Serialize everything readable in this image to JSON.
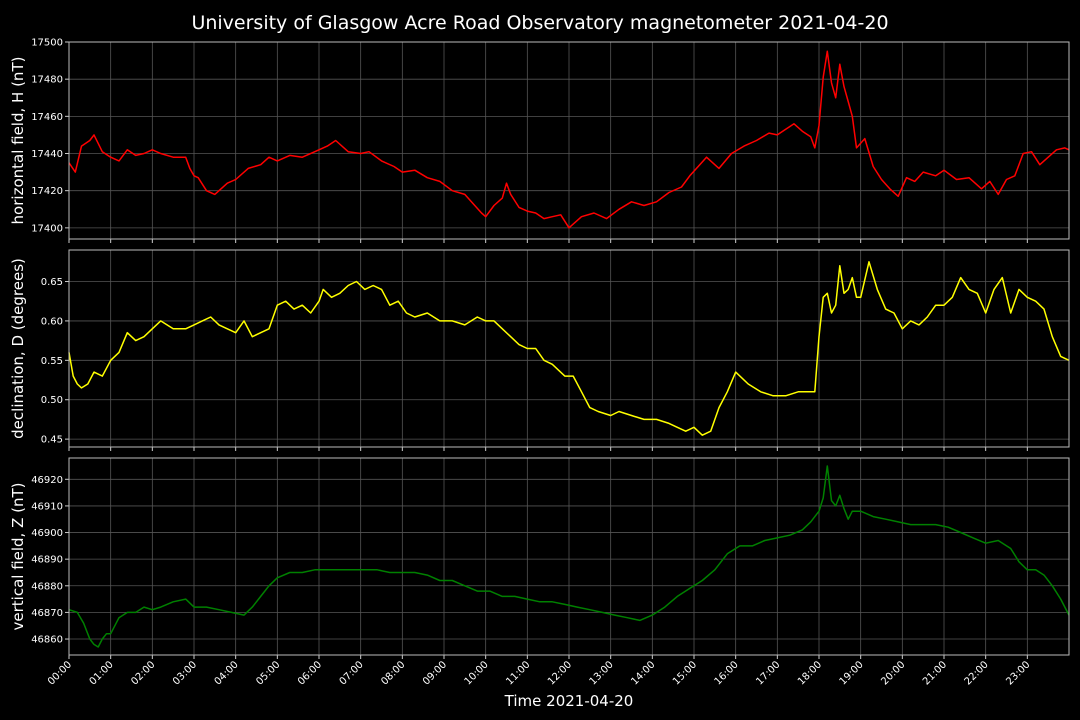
{
  "chart_data": {
    "type": "line",
    "title": "University of Glasgow Acre Road Observatory magnetometer 2021-04-20",
    "xlabel": "Time 2021-04-20",
    "x_ticks": [
      "00:00",
      "01:00",
      "02:00",
      "03:00",
      "04:00",
      "05:00",
      "06:00",
      "07:00",
      "08:00",
      "09:00",
      "10:00",
      "11:00",
      "12:00",
      "13:00",
      "14:00",
      "15:00",
      "16:00",
      "17:00",
      "18:00",
      "19:00",
      "20:00",
      "21:00",
      "22:00",
      "23:00"
    ],
    "xlim": [
      0,
      24
    ],
    "grid": true,
    "panels": [
      {
        "ylabel": "horizontal field, H (nT)",
        "color": "#ff0000",
        "ylim": [
          17394,
          17500
        ],
        "y_ticks": [
          17400,
          17420,
          17440,
          17460,
          17480,
          17500
        ],
        "x": [
          0,
          0.15,
          0.3,
          0.5,
          0.6,
          0.8,
          1.0,
          1.2,
          1.4,
          1.6,
          1.8,
          2.0,
          2.2,
          2.5,
          2.8,
          2.9,
          3.0,
          3.1,
          3.3,
          3.5,
          3.8,
          4.0,
          4.3,
          4.6,
          4.8,
          5.0,
          5.3,
          5.6,
          5.9,
          6.2,
          6.4,
          6.7,
          7.0,
          7.2,
          7.5,
          7.8,
          8.0,
          8.3,
          8.6,
          8.9,
          9.2,
          9.5,
          9.7,
          9.9,
          10.0,
          10.2,
          10.4,
          10.5,
          10.6,
          10.8,
          11.0,
          11.2,
          11.4,
          11.6,
          11.8,
          12.0,
          12.1,
          12.3,
          12.6,
          12.9,
          13.2,
          13.5,
          13.8,
          14.1,
          14.4,
          14.7,
          14.9,
          15.1,
          15.3,
          15.6,
          15.9,
          16.2,
          16.5,
          16.8,
          17.0,
          17.2,
          17.4,
          17.6,
          17.8,
          17.9,
          18.0,
          18.1,
          18.2,
          18.3,
          18.4,
          18.5,
          18.6,
          18.7,
          18.8,
          18.9,
          19.1,
          19.3,
          19.5,
          19.7,
          19.9,
          20.1,
          20.3,
          20.5,
          20.8,
          21.0,
          21.3,
          21.6,
          21.9,
          22.1,
          22.3,
          22.5,
          22.7,
          22.9,
          23.1,
          23.3,
          23.5,
          23.7,
          23.9,
          24.0
        ],
        "values": [
          17435,
          17430,
          17444,
          17447,
          17450,
          17441,
          17438,
          17436,
          17442,
          17439,
          17440,
          17442,
          17440,
          17438,
          17438,
          17432,
          17428,
          17427,
          17420,
          17418,
          17424,
          17426,
          17432,
          17434,
          17438,
          17436,
          17439,
          17438,
          17441,
          17444,
          17447,
          17441,
          17440,
          17441,
          17436,
          17433,
          17430,
          17431,
          17427,
          17425,
          17420,
          17418,
          17413,
          17408,
          17406,
          17412,
          17416,
          17424,
          17418,
          17411,
          17409,
          17408,
          17405,
          17406,
          17407,
          17400,
          17402,
          17406,
          17408,
          17405,
          17410,
          17414,
          17412,
          17414,
          17419,
          17422,
          17428,
          17433,
          17438,
          17432,
          17440,
          17444,
          17447,
          17451,
          17450,
          17453,
          17456,
          17452,
          17449,
          17443,
          17455,
          17481,
          17495,
          17478,
          17470,
          17488,
          17476,
          17468,
          17460,
          17443,
          17448,
          17433,
          17426,
          17421,
          17417,
          17427,
          17425,
          17430,
          17428,
          17431,
          17426,
          17427,
          17421,
          17425,
          17418,
          17426,
          17428,
          17440,
          17441,
          17434,
          17438,
          17442,
          17443,
          17442
        ]
      },
      {
        "ylabel": "declination, D (degrees)",
        "color": "#ffff00",
        "ylim": [
          0.44,
          0.69
        ],
        "y_ticks": [
          0.45,
          0.5,
          0.55,
          0.6,
          0.65
        ],
        "x": [
          0,
          0.1,
          0.2,
          0.3,
          0.45,
          0.6,
          0.8,
          1.0,
          1.2,
          1.4,
          1.6,
          1.8,
          2.0,
          2.2,
          2.5,
          2.8,
          3.0,
          3.2,
          3.4,
          3.6,
          3.8,
          4.0,
          4.2,
          4.4,
          4.6,
          4.8,
          5.0,
          5.2,
          5.4,
          5.6,
          5.8,
          6.0,
          6.1,
          6.3,
          6.5,
          6.7,
          6.9,
          7.1,
          7.3,
          7.5,
          7.7,
          7.9,
          8.1,
          8.3,
          8.6,
          8.9,
          9.2,
          9.5,
          9.8,
          10.0,
          10.2,
          10.4,
          10.6,
          10.8,
          11.0,
          11.2,
          11.4,
          11.6,
          11.9,
          12.1,
          12.3,
          12.5,
          12.7,
          13.0,
          13.2,
          13.5,
          13.8,
          14.1,
          14.4,
          14.6,
          14.8,
          15.0,
          15.2,
          15.4,
          15.6,
          15.8,
          16.0,
          16.3,
          16.6,
          16.9,
          17.2,
          17.5,
          17.9,
          18.0,
          18.1,
          18.2,
          18.3,
          18.4,
          18.5,
          18.6,
          18.7,
          18.8,
          18.9,
          19.0,
          19.2,
          19.4,
          19.6,
          19.8,
          20.0,
          20.2,
          20.4,
          20.6,
          20.8,
          21.0,
          21.2,
          21.4,
          21.6,
          21.8,
          22.0,
          22.2,
          22.4,
          22.6,
          22.8,
          23.0,
          23.2,
          23.4,
          23.6,
          23.8,
          24.0
        ],
        "values": [
          0.56,
          0.53,
          0.52,
          0.515,
          0.52,
          0.535,
          0.53,
          0.55,
          0.56,
          0.585,
          0.575,
          0.58,
          0.59,
          0.6,
          0.59,
          0.59,
          0.595,
          0.6,
          0.605,
          0.595,
          0.59,
          0.585,
          0.6,
          0.58,
          0.585,
          0.59,
          0.62,
          0.625,
          0.615,
          0.62,
          0.61,
          0.625,
          0.64,
          0.63,
          0.635,
          0.645,
          0.65,
          0.64,
          0.645,
          0.64,
          0.62,
          0.625,
          0.61,
          0.605,
          0.61,
          0.6,
          0.6,
          0.595,
          0.605,
          0.6,
          0.6,
          0.59,
          0.58,
          0.57,
          0.565,
          0.565,
          0.55,
          0.545,
          0.53,
          0.53,
          0.51,
          0.49,
          0.485,
          0.48,
          0.485,
          0.48,
          0.475,
          0.475,
          0.47,
          0.465,
          0.46,
          0.465,
          0.455,
          0.46,
          0.49,
          0.51,
          0.535,
          0.52,
          0.51,
          0.505,
          0.505,
          0.51,
          0.51,
          0.58,
          0.63,
          0.635,
          0.61,
          0.62,
          0.67,
          0.635,
          0.64,
          0.655,
          0.63,
          0.63,
          0.675,
          0.64,
          0.615,
          0.61,
          0.59,
          0.6,
          0.595,
          0.605,
          0.62,
          0.62,
          0.63,
          0.655,
          0.64,
          0.635,
          0.61,
          0.64,
          0.655,
          0.61,
          0.64,
          0.63,
          0.625,
          0.615,
          0.58,
          0.555,
          0.55
        ],
        "y_format": 2
      },
      {
        "ylabel": "vertical field, Z (nT)",
        "color": "#008000",
        "ylim": [
          46854,
          46928
        ],
        "y_ticks": [
          46860,
          46870,
          46880,
          46890,
          46900,
          46910,
          46920
        ],
        "x": [
          0,
          0.2,
          0.35,
          0.5,
          0.6,
          0.7,
          0.8,
          0.9,
          1.0,
          1.2,
          1.4,
          1.6,
          1.8,
          2.0,
          2.2,
          2.5,
          2.8,
          3.0,
          3.3,
          3.6,
          3.9,
          4.2,
          4.4,
          4.6,
          4.8,
          5.0,
          5.3,
          5.6,
          5.9,
          6.2,
          6.5,
          6.8,
          7.1,
          7.4,
          7.7,
          8.0,
          8.3,
          8.6,
          8.9,
          9.2,
          9.5,
          9.8,
          10.1,
          10.4,
          10.7,
          11.0,
          11.3,
          11.6,
          11.9,
          12.2,
          12.5,
          12.8,
          13.1,
          13.4,
          13.7,
          14.0,
          14.3,
          14.6,
          14.9,
          15.2,
          15.5,
          15.8,
          16.1,
          16.4,
          16.7,
          17.0,
          17.3,
          17.6,
          17.8,
          18.0,
          18.1,
          18.2,
          18.3,
          18.4,
          18.5,
          18.6,
          18.7,
          18.8,
          19.0,
          19.3,
          19.6,
          19.9,
          20.2,
          20.5,
          20.8,
          21.1,
          21.4,
          21.7,
          22.0,
          22.3,
          22.6,
          22.8,
          23.0,
          23.2,
          23.4,
          23.6,
          23.8,
          24.0
        ],
        "values": [
          46871,
          46870,
          46866,
          46860,
          46858,
          46857,
          46860,
          46862,
          46862,
          46868,
          46870,
          46870,
          46872,
          46871,
          46872,
          46874,
          46875,
          46872,
          46872,
          46871,
          46870,
          46869,
          46872,
          46876,
          46880,
          46883,
          46885,
          46885,
          46886,
          46886,
          46886,
          46886,
          46886,
          46886,
          46885,
          46885,
          46885,
          46884,
          46882,
          46882,
          46880,
          46878,
          46878,
          46876,
          46876,
          46875,
          46874,
          46874,
          46873,
          46872,
          46871,
          46870,
          46869,
          46868,
          46867,
          46869,
          46872,
          46876,
          46879,
          46882,
          46886,
          46892,
          46895,
          46895,
          46897,
          46898,
          46899,
          46901,
          46904,
          46908,
          46913,
          46925,
          46912,
          46910,
          46914,
          46909,
          46905,
          46908,
          46908,
          46906,
          46905,
          46904,
          46903,
          46903,
          46903,
          46902,
          46900,
          46898,
          46896,
          46897,
          46894,
          46889,
          46886,
          46886,
          46884,
          46880,
          46875,
          46869
        ]
      }
    ]
  }
}
